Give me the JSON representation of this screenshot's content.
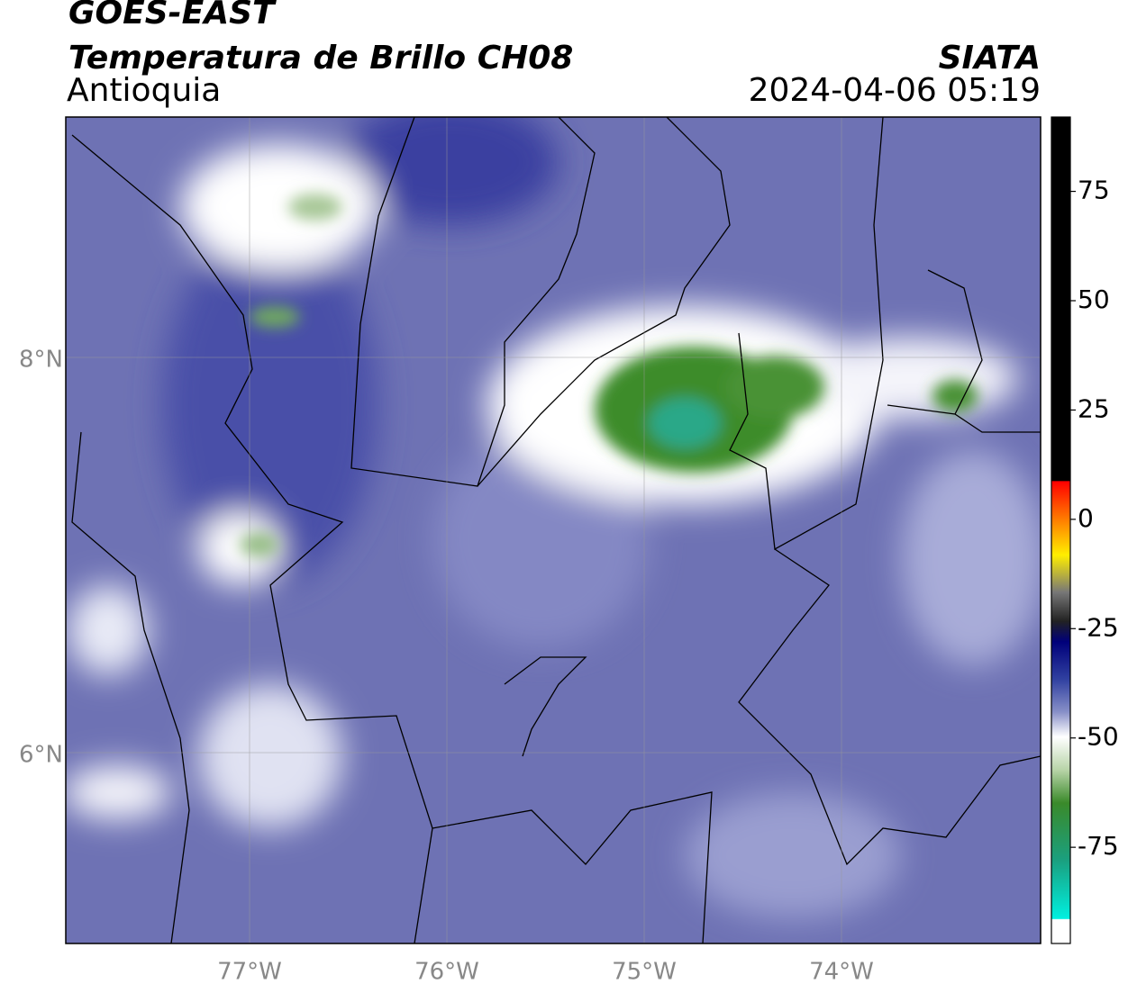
{
  "header": {
    "title": "GOES-EAST",
    "subtitle": "Temperatura de Brillo CH08",
    "region": "Antioquia",
    "source": "SIATA",
    "datetime": "2024-04-06 05:19"
  },
  "map": {
    "lat_labels": [
      "8°N",
      "6°N"
    ],
    "lon_labels": [
      "77°W",
      "76°W",
      "75°W",
      "74°W"
    ]
  },
  "colorbar": {
    "range": [
      -97,
      92
    ],
    "ticks": [
      75,
      50,
      25,
      0,
      -25,
      -50,
      -75
    ]
  }
}
